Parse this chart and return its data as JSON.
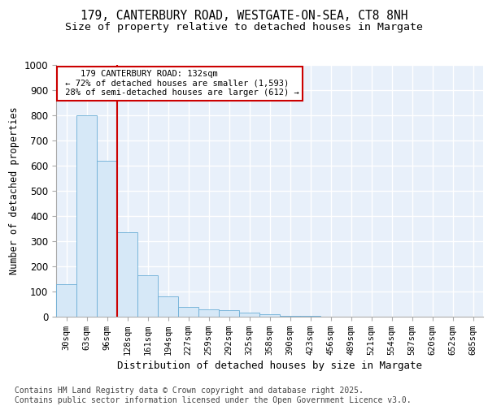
{
  "title_line1": "179, CANTERBURY ROAD, WESTGATE-ON-SEA, CT8 8NH",
  "title_line2": "Size of property relative to detached houses in Margate",
  "xlabel": "Distribution of detached houses by size in Margate",
  "ylabel": "Number of detached properties",
  "bar_color": "#d6e8f7",
  "bar_edge_color": "#6baed6",
  "bins": [
    "30sqm",
    "63sqm",
    "96sqm",
    "128sqm",
    "161sqm",
    "194sqm",
    "227sqm",
    "259sqm",
    "292sqm",
    "325sqm",
    "358sqm",
    "390sqm",
    "423sqm",
    "456sqm",
    "489sqm",
    "521sqm",
    "554sqm",
    "587sqm",
    "620sqm",
    "652sqm",
    "685sqm"
  ],
  "values": [
    130,
    800,
    620,
    335,
    165,
    80,
    40,
    30,
    25,
    15,
    10,
    2,
    2,
    0,
    0,
    0,
    0,
    0,
    0,
    0,
    0
  ],
  "vline_x": 2.5,
  "vline_color": "#cc0000",
  "annotation_line1": "    179 CANTERBURY ROAD: 132sqm",
  "annotation_line2": " ← 72% of detached houses are smaller (1,593)",
  "annotation_line3": " 28% of semi-detached houses are larger (612) →",
  "ylim": [
    0,
    1000
  ],
  "yticks": [
    0,
    100,
    200,
    300,
    400,
    500,
    600,
    700,
    800,
    900,
    1000
  ],
  "background_color": "#e8f0fa",
  "grid_color": "#ffffff",
  "footer_text": "Contains HM Land Registry data © Crown copyright and database right 2025.\nContains public sector information licensed under the Open Government Licence v3.0.",
  "title_fontsize": 10.5,
  "subtitle_fontsize": 9.5,
  "footer_fontsize": 7
}
